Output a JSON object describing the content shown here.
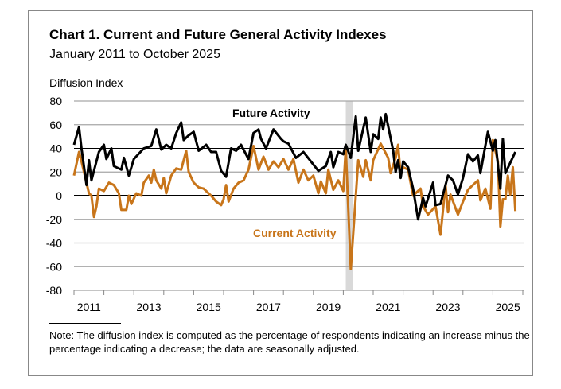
{
  "chart_data": {
    "type": "line",
    "title": "Chart 1. Current and Future General Activity Indexes",
    "subtitle": "January 2011 to October 2025",
    "ylabel": "Diffusion Index",
    "xlabel": "",
    "ylim": [
      -80,
      80
    ],
    "yticks": [
      80,
      60,
      40,
      20,
      0,
      -20,
      -40,
      -60,
      -80
    ],
    "xlim": [
      "2011-01",
      "2025-10"
    ],
    "xtick_labels": [
      "2011",
      "2013",
      "2015",
      "2017",
      "2019",
      "2021",
      "2023",
      "2025"
    ],
    "grid": true,
    "shaded_period": {
      "start": "2020-02",
      "end": "2020-04"
    },
    "series": [
      {
        "name": "Future Activity",
        "color": "#000000",
        "points": [
          [
            "2011-01",
            43
          ],
          [
            "2011-03",
            58
          ],
          [
            "2011-04",
            40
          ],
          [
            "2011-06",
            9
          ],
          [
            "2011-07",
            30
          ],
          [
            "2011-08",
            13
          ],
          [
            "2011-11",
            37
          ],
          [
            "2012-01",
            43
          ],
          [
            "2012-02",
            31
          ],
          [
            "2012-04",
            40
          ],
          [
            "2012-05",
            25
          ],
          [
            "2012-08",
            22
          ],
          [
            "2012-09",
            32
          ],
          [
            "2012-11",
            17
          ],
          [
            "2013-01",
            31
          ],
          [
            "2013-05",
            40
          ],
          [
            "2013-08",
            42
          ],
          [
            "2013-10",
            56
          ],
          [
            "2013-12",
            39
          ],
          [
            "2014-02",
            43
          ],
          [
            "2014-04",
            40
          ],
          [
            "2014-06",
            53
          ],
          [
            "2014-08",
            62
          ],
          [
            "2014-09",
            47
          ],
          [
            "2014-11",
            51
          ],
          [
            "2015-01",
            54
          ],
          [
            "2015-03",
            38
          ],
          [
            "2015-06",
            43
          ],
          [
            "2015-08",
            37
          ],
          [
            "2015-10",
            37
          ],
          [
            "2015-12",
            21
          ],
          [
            "2016-02",
            16
          ],
          [
            "2016-04",
            40
          ],
          [
            "2016-06",
            38
          ],
          [
            "2016-08",
            43
          ],
          [
            "2016-11",
            31
          ],
          [
            "2017-01",
            53
          ],
          [
            "2017-03",
            56
          ],
          [
            "2017-04",
            48
          ],
          [
            "2017-06",
            40
          ],
          [
            "2017-09",
            56
          ],
          [
            "2017-12",
            48
          ],
          [
            "2018-01",
            46
          ],
          [
            "2018-03",
            44
          ],
          [
            "2018-06",
            32
          ],
          [
            "2018-09",
            37
          ],
          [
            "2018-12",
            29
          ],
          [
            "2019-03",
            21
          ],
          [
            "2019-06",
            25
          ],
          [
            "2019-08",
            37
          ],
          [
            "2019-09",
            24
          ],
          [
            "2019-11",
            37
          ],
          [
            "2020-01",
            35
          ],
          [
            "2020-02",
            43
          ],
          [
            "2020-04",
            32
          ],
          [
            "2020-06",
            67
          ],
          [
            "2020-07",
            38
          ],
          [
            "2020-10",
            66
          ],
          [
            "2020-12",
            37
          ],
          [
            "2021-01",
            52
          ],
          [
            "2021-03",
            48
          ],
          [
            "2021-04",
            66
          ],
          [
            "2021-05",
            56
          ],
          [
            "2021-06",
            69
          ],
          [
            "2021-09",
            38
          ],
          [
            "2021-10",
            20
          ],
          [
            "2021-11",
            30
          ],
          [
            "2021-12",
            15
          ],
          [
            "2022-01",
            29
          ],
          [
            "2022-03",
            24
          ],
          [
            "2022-05",
            6
          ],
          [
            "2022-07",
            -20
          ],
          [
            "2022-09",
            -2
          ],
          [
            "2022-10",
            -9
          ],
          [
            "2023-01",
            11
          ],
          [
            "2023-02",
            -8
          ],
          [
            "2023-04",
            -7
          ],
          [
            "2023-07",
            17
          ],
          [
            "2023-09",
            13
          ],
          [
            "2023-11",
            1
          ],
          [
            "2024-01",
            15
          ],
          [
            "2024-03",
            35
          ],
          [
            "2024-05",
            29
          ],
          [
            "2024-07",
            34
          ],
          [
            "2024-08",
            19
          ],
          [
            "2024-11",
            54
          ],
          [
            "2025-01",
            38
          ],
          [
            "2025-02",
            47
          ],
          [
            "2025-04",
            6
          ],
          [
            "2025-05",
            48
          ],
          [
            "2025-06",
            19
          ],
          [
            "2025-10",
            37
          ]
        ]
      },
      {
        "name": "Current Activity",
        "color": "#c8751a",
        "points": [
          [
            "2011-01",
            17
          ],
          [
            "2011-03",
            37
          ],
          [
            "2011-04",
            29
          ],
          [
            "2011-06",
            11
          ],
          [
            "2011-07",
            2
          ],
          [
            "2011-08",
            0
          ],
          [
            "2011-09",
            -18
          ],
          [
            "2011-10",
            -9
          ],
          [
            "2011-11",
            6
          ],
          [
            "2012-01",
            4
          ],
          [
            "2012-03",
            11
          ],
          [
            "2012-05",
            9
          ],
          [
            "2012-07",
            2
          ],
          [
            "2012-08",
            -12
          ],
          [
            "2012-10",
            -12
          ],
          [
            "2012-11",
            0
          ],
          [
            "2012-12",
            -7
          ],
          [
            "2013-02",
            2
          ],
          [
            "2013-04",
            0
          ],
          [
            "2013-05",
            11
          ],
          [
            "2013-07",
            17
          ],
          [
            "2013-08",
            11
          ],
          [
            "2013-09",
            22
          ],
          [
            "2013-10",
            13
          ],
          [
            "2013-12",
            6
          ],
          [
            "2014-01",
            15
          ],
          [
            "2014-02",
            2
          ],
          [
            "2014-04",
            17
          ],
          [
            "2014-06",
            23
          ],
          [
            "2014-08",
            22
          ],
          [
            "2014-10",
            38
          ],
          [
            "2014-11",
            20
          ],
          [
            "2015-01",
            11
          ],
          [
            "2015-03",
            7
          ],
          [
            "2015-05",
            6
          ],
          [
            "2015-08",
            0
          ],
          [
            "2015-10",
            -5
          ],
          [
            "2015-12",
            -8
          ],
          [
            "2016-01",
            -3
          ],
          [
            "2016-02",
            9
          ],
          [
            "2016-03",
            -5
          ],
          [
            "2016-05",
            6
          ],
          [
            "2016-07",
            11
          ],
          [
            "2016-09",
            13
          ],
          [
            "2016-11",
            22
          ],
          [
            "2017-01",
            42
          ],
          [
            "2017-03",
            22
          ],
          [
            "2017-05",
            33
          ],
          [
            "2017-07",
            22
          ],
          [
            "2017-09",
            29
          ],
          [
            "2017-11",
            24
          ],
          [
            "2018-01",
            31
          ],
          [
            "2018-03",
            22
          ],
          [
            "2018-05",
            31
          ],
          [
            "2018-07",
            11
          ],
          [
            "2018-09",
            22
          ],
          [
            "2018-11",
            13
          ],
          [
            "2019-01",
            17
          ],
          [
            "2019-03",
            2
          ],
          [
            "2019-04",
            12
          ],
          [
            "2019-06",
            2
          ],
          [
            "2019-07",
            22
          ],
          [
            "2019-09",
            5
          ],
          [
            "2019-11",
            13
          ],
          [
            "2020-01",
            4
          ],
          [
            "2020-02",
            40
          ],
          [
            "2020-04",
            -62
          ],
          [
            "2020-07",
            30
          ],
          [
            "2020-09",
            16
          ],
          [
            "2020-10",
            30
          ],
          [
            "2020-12",
            13
          ],
          [
            "2021-01",
            30
          ],
          [
            "2021-04",
            44
          ],
          [
            "2021-07",
            32
          ],
          [
            "2021-08",
            19
          ],
          [
            "2021-10",
            32
          ],
          [
            "2021-11",
            43
          ],
          [
            "2021-12",
            17
          ],
          [
            "2022-01",
            24
          ],
          [
            "2022-03",
            22
          ],
          [
            "2022-05",
            0
          ],
          [
            "2022-08",
            6
          ],
          [
            "2022-09",
            -9
          ],
          [
            "2022-11",
            -16
          ],
          [
            "2023-02",
            -9
          ],
          [
            "2023-04",
            -33
          ],
          [
            "2023-06",
            9
          ],
          [
            "2023-07",
            -14
          ],
          [
            "2023-08",
            1
          ],
          [
            "2023-11",
            -16
          ],
          [
            "2024-01",
            -5
          ],
          [
            "2024-03",
            5
          ],
          [
            "2024-05",
            9
          ],
          [
            "2024-07",
            13
          ],
          [
            "2024-08",
            -4
          ],
          [
            "2024-10",
            6
          ],
          [
            "2024-12",
            -11
          ],
          [
            "2025-01",
            47
          ],
          [
            "2025-03",
            29
          ],
          [
            "2025-04",
            -26
          ],
          [
            "2025-05",
            -3
          ],
          [
            "2025-06",
            -3
          ],
          [
            "2025-07",
            17
          ],
          [
            "2025-08",
            1
          ],
          [
            "2025-09",
            24
          ],
          [
            "2025-10",
            -13
          ]
        ]
      }
    ],
    "note": "Note: The diffusion index is computed as the percentage of respondents indicating an increase minus the percentage indicating a decrease; the data are seasonally adjusted."
  }
}
